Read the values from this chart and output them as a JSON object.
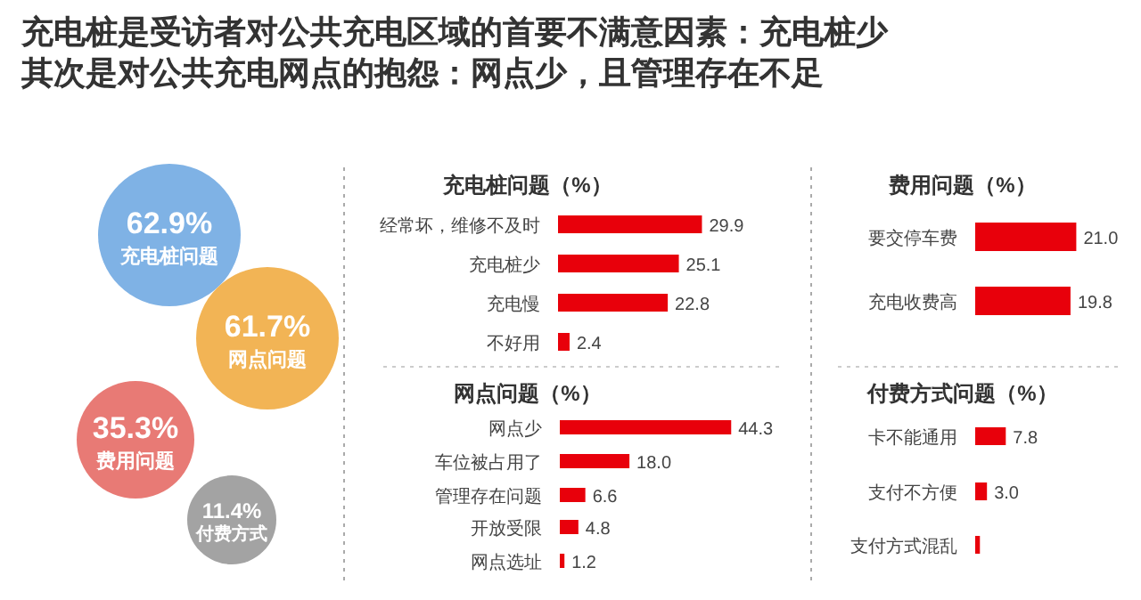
{
  "chart_data": [
    {
      "type": "other",
      "title": "充电桩是受访者对公共充电区域的首要不满意因素：充电桩少",
      "subtitle": "其次是对公共充电网点的抱怨：网点少，且管理存在不足",
      "categories": [
        "充电桩问题",
        "网点问题",
        "费用问题",
        "付费方式"
      ],
      "values": [
        62.9,
        61.7,
        35.3,
        11.4
      ],
      "value_labels": [
        "62.9%",
        "61.7%",
        "35.3%",
        "11.4%"
      ],
      "colors": [
        "#7fb2e5",
        "#f2b455",
        "#e87a75",
        "#a3a3a3"
      ]
    },
    {
      "type": "bar",
      "orientation": "horizontal",
      "title": "充电桩问题（%）",
      "categories": [
        "经常坏，维修不及时",
        "充电桩少",
        "充电慢",
        "不好用"
      ],
      "values": [
        29.9,
        25.1,
        22.8,
        2.4
      ],
      "color": "#e8000b",
      "data_labels": true
    },
    {
      "type": "bar",
      "orientation": "horizontal",
      "title": "网点问题（%）",
      "categories": [
        "网点少",
        "车位被占用了",
        "管理存在问题",
        "开放受限",
        "网点选址"
      ],
      "values": [
        44.3,
        18.0,
        6.6,
        4.8,
        1.2
      ],
      "value_labels": [
        "44.3",
        "18.0",
        "6.6",
        "4.8",
        "1.2"
      ],
      "color": "#e8000b"
    },
    {
      "type": "bar",
      "orientation": "horizontal",
      "title": "费用问题（%）",
      "categories": [
        "要交停车费",
        "充电收费高"
      ],
      "values": [
        21.0,
        19.8
      ],
      "value_labels": [
        "21.0",
        "19.8"
      ],
      "color": "#e8000b"
    },
    {
      "type": "bar",
      "orientation": "horizontal",
      "title": "付费方式问题（%）",
      "categories": [
        "卡不能通用",
        "支付不方便",
        "支付方式混乱"
      ],
      "values": [
        7.8,
        3.0,
        1.2
      ],
      "value_labels": [
        "7.8",
        "3.0",
        null
      ],
      "color": "#e8000b"
    }
  ]
}
